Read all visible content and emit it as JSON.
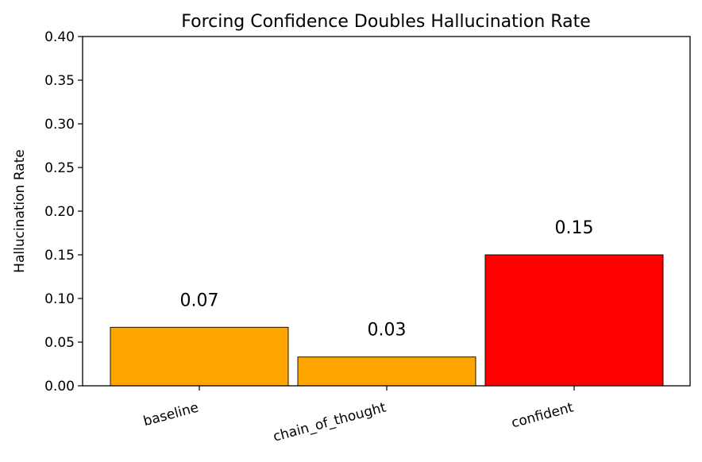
{
  "chart_data": {
    "type": "bar",
    "title": "Forcing Confidence Doubles Hallucination Rate",
    "xlabel": "",
    "ylabel": "Hallucination Rate",
    "categories": [
      "baseline",
      "chain_of_thought",
      "confident"
    ],
    "values": [
      0.067,
      0.033,
      0.15
    ],
    "value_labels": [
      "0.07",
      "0.03",
      "0.15"
    ],
    "bar_colors": [
      "#ffa500",
      "#ffa500",
      "#ff0000"
    ],
    "ylim": [
      0,
      0.4
    ],
    "yticks": [
      "0.00",
      "0.05",
      "0.10",
      "0.15",
      "0.20",
      "0.25",
      "0.30",
      "0.35",
      "0.40"
    ],
    "ytick_values": [
      0,
      0.05,
      0.1,
      0.15,
      0.2,
      0.25,
      0.3,
      0.35,
      0.4
    ],
    "grid": false,
    "legend": "none"
  }
}
